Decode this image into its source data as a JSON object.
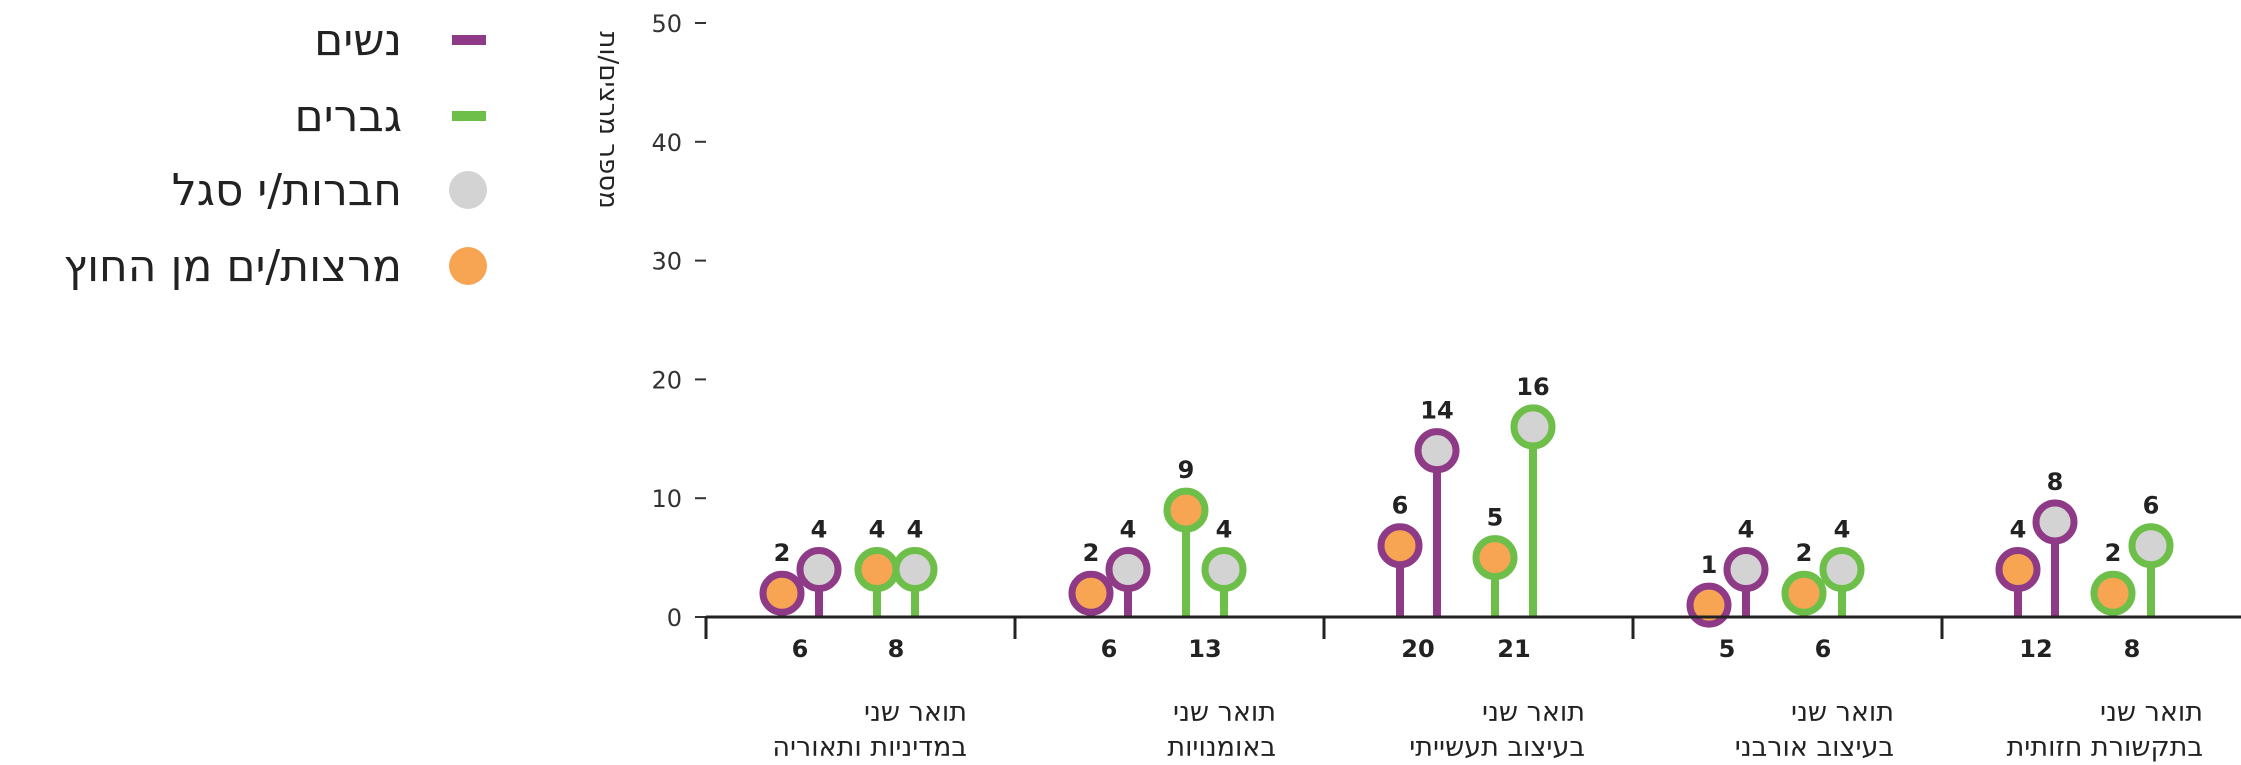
{
  "legend": [
    {
      "label": "נשים",
      "marker": "bar",
      "color": "#8f3a87"
    },
    {
      "label": "גברים",
      "marker": "bar",
      "color": "#6dbf4a"
    },
    {
      "label": "חברות/י סגל",
      "marker": "dot",
      "color": "#d3d3d3"
    },
    {
      "label": "מרצות/ים מן החוץ",
      "marker": "dot",
      "color": "#f7a552"
    }
  ],
  "colors": {
    "women": "#8f3a87",
    "men": "#6dbf4a",
    "faculty": "#d3d3d3",
    "external": "#f7a552",
    "axis": "#222222"
  },
  "chart_data": {
    "type": "lollipop",
    "ylabel": "מספר מרצים/ות",
    "ylim": [
      0,
      50
    ],
    "yticks": [
      0,
      10,
      20,
      30,
      40,
      50
    ],
    "groups": [
      {
        "label_lines": [
          "תואר שני",
          "בתקשורת חזותית"
        ],
        "women": {
          "total": 12,
          "external": 4,
          "faculty": 8
        },
        "men": {
          "total": 8,
          "external": 2,
          "faculty": 6
        }
      },
      {
        "label_lines": [
          "תואר שני",
          "בעיצוב אורבני"
        ],
        "women": {
          "total": 5,
          "external": 1,
          "faculty": 4
        },
        "men": {
          "total": 6,
          "external": 2,
          "faculty": 4
        }
      },
      {
        "label_lines": [
          "תואר שני",
          "בעיצוב תעשייתי"
        ],
        "women": {
          "total": 20,
          "external": 6,
          "faculty": 14
        },
        "men": {
          "total": 21,
          "external": 5,
          "faculty": 16
        }
      },
      {
        "label_lines": [
          "תואר שני",
          "באומנויות"
        ],
        "women": {
          "total": 6,
          "external": 2,
          "faculty": 4
        },
        "men": {
          "total": 13,
          "external": 9,
          "faculty": 4
        }
      },
      {
        "label_lines": [
          "תואר שני",
          "במדיניות ותאוריה"
        ],
        "women": {
          "total": 6,
          "external": 2,
          "faculty": 4
        },
        "men": {
          "total": 8,
          "external": 4,
          "faculty": 4
        }
      }
    ]
  }
}
